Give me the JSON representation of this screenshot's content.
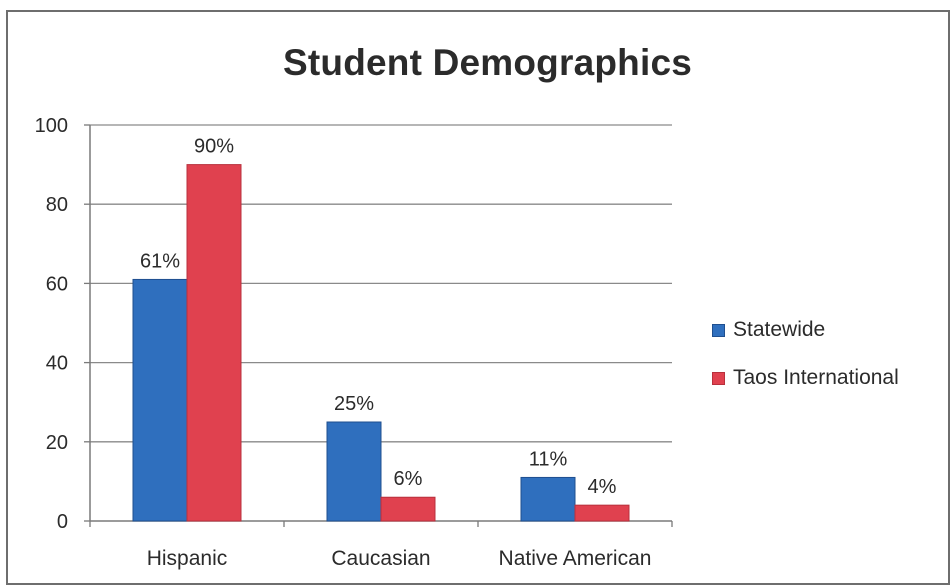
{
  "chart_data": {
    "type": "bar",
    "title": "Student Demographics",
    "categories": [
      "Hispanic",
      "Caucasian",
      "Native American"
    ],
    "series": [
      {
        "name": "Statewide",
        "values": [
          61,
          25,
          11
        ],
        "labels": [
          "61%",
          "25%",
          "11%"
        ],
        "color": "#2f6fbe"
      },
      {
        "name": "Taos International",
        "values": [
          90,
          6,
          4
        ],
        "labels": [
          "90%",
          "6%",
          "4%"
        ],
        "color": "#e0414f"
      }
    ],
    "ylim": [
      0,
      100
    ],
    "yticks": [
      0,
      20,
      40,
      60,
      80,
      100
    ],
    "grid": true,
    "legend": "right",
    "xlabel": "",
    "ylabel": ""
  }
}
